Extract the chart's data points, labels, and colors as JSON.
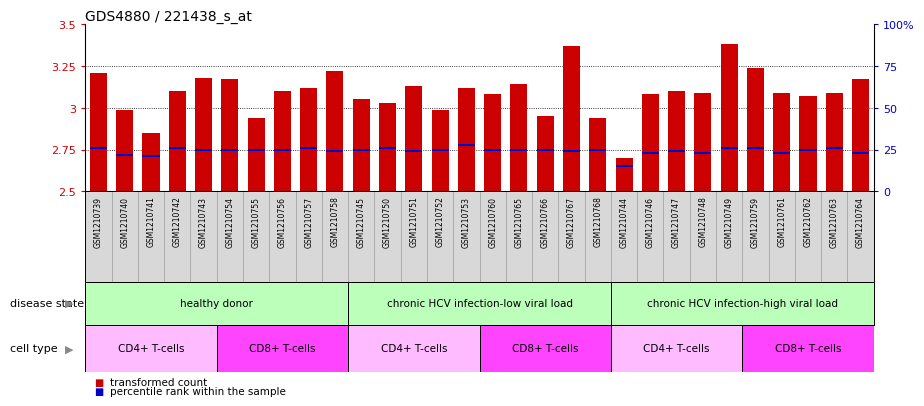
{
  "title": "GDS4880 / 221438_s_at",
  "samples": [
    "GSM1210739",
    "GSM1210740",
    "GSM1210741",
    "GSM1210742",
    "GSM1210743",
    "GSM1210754",
    "GSM1210755",
    "GSM1210756",
    "GSM1210757",
    "GSM1210758",
    "GSM1210745",
    "GSM1210750",
    "GSM1210751",
    "GSM1210752",
    "GSM1210753",
    "GSM1210760",
    "GSM1210765",
    "GSM1210766",
    "GSM1210767",
    "GSM1210768",
    "GSM1210744",
    "GSM1210746",
    "GSM1210747",
    "GSM1210748",
    "GSM1210749",
    "GSM1210759",
    "GSM1210761",
    "GSM1210762",
    "GSM1210763",
    "GSM1210764"
  ],
  "bar_values": [
    3.21,
    2.99,
    2.85,
    3.1,
    3.18,
    3.17,
    2.94,
    3.1,
    3.12,
    3.22,
    3.05,
    3.03,
    3.13,
    2.99,
    3.12,
    3.08,
    3.14,
    2.95,
    3.37,
    2.94,
    2.7,
    3.08,
    3.1,
    3.09,
    3.38,
    3.24,
    3.09,
    3.07,
    3.09,
    3.17
  ],
  "percentile_values": [
    2.76,
    2.72,
    2.71,
    2.76,
    2.75,
    2.75,
    2.75,
    2.75,
    2.76,
    2.74,
    2.75,
    2.76,
    2.74,
    2.75,
    2.78,
    2.75,
    2.75,
    2.75,
    2.74,
    2.75,
    2.65,
    2.73,
    2.74,
    2.73,
    2.76,
    2.76,
    2.73,
    2.75,
    2.76,
    2.73
  ],
  "ylim": [
    2.5,
    3.5
  ],
  "yticks": [
    2.5,
    2.75,
    3.0,
    3.25,
    3.5
  ],
  "ytick_labels": [
    "2.5",
    "2.75",
    "3",
    "3.25",
    "3.5"
  ],
  "right_yticks_pct": [
    0,
    25,
    50,
    75,
    100
  ],
  "right_ytick_labels": [
    "0",
    "25",
    "50",
    "75",
    "100%"
  ],
  "gridlines": [
    2.75,
    3.0,
    3.25
  ],
  "bar_color": "#cc0000",
  "percentile_color": "#0000cc",
  "disease_state_groups": [
    {
      "label": "healthy donor",
      "start": 0,
      "end": 9
    },
    {
      "label": "chronic HCV infection-low viral load",
      "start": 10,
      "end": 19
    },
    {
      "label": "chronic HCV infection-high viral load",
      "start": 20,
      "end": 29
    }
  ],
  "cell_type_groups": [
    {
      "label": "CD4+ T-cells",
      "start": 0,
      "end": 4,
      "cd4": true
    },
    {
      "label": "CD8+ T-cells",
      "start": 5,
      "end": 9,
      "cd4": false
    },
    {
      "label": "CD4+ T-cells",
      "start": 10,
      "end": 14,
      "cd4": true
    },
    {
      "label": "CD8+ T-cells",
      "start": 15,
      "end": 19,
      "cd4": false
    },
    {
      "label": "CD4+ T-cells",
      "start": 20,
      "end": 24,
      "cd4": true
    },
    {
      "label": "CD8+ T-cells",
      "start": 25,
      "end": 29,
      "cd4": false
    }
  ],
  "disease_color": "#bbffbb",
  "cd4_color": "#ffbbff",
  "cd8_color": "#ff44ff",
  "legend_bar_color": "#cc0000",
  "legend_percentile_color": "#0000cc",
  "legend_bar_label": "transformed count",
  "legend_percentile_label": "percentile rank within the sample",
  "disease_label": "disease state",
  "cell_type_label": "cell type",
  "xtick_bg": "#d8d8d8",
  "title_fontsize": 10,
  "bar_width": 0.65
}
